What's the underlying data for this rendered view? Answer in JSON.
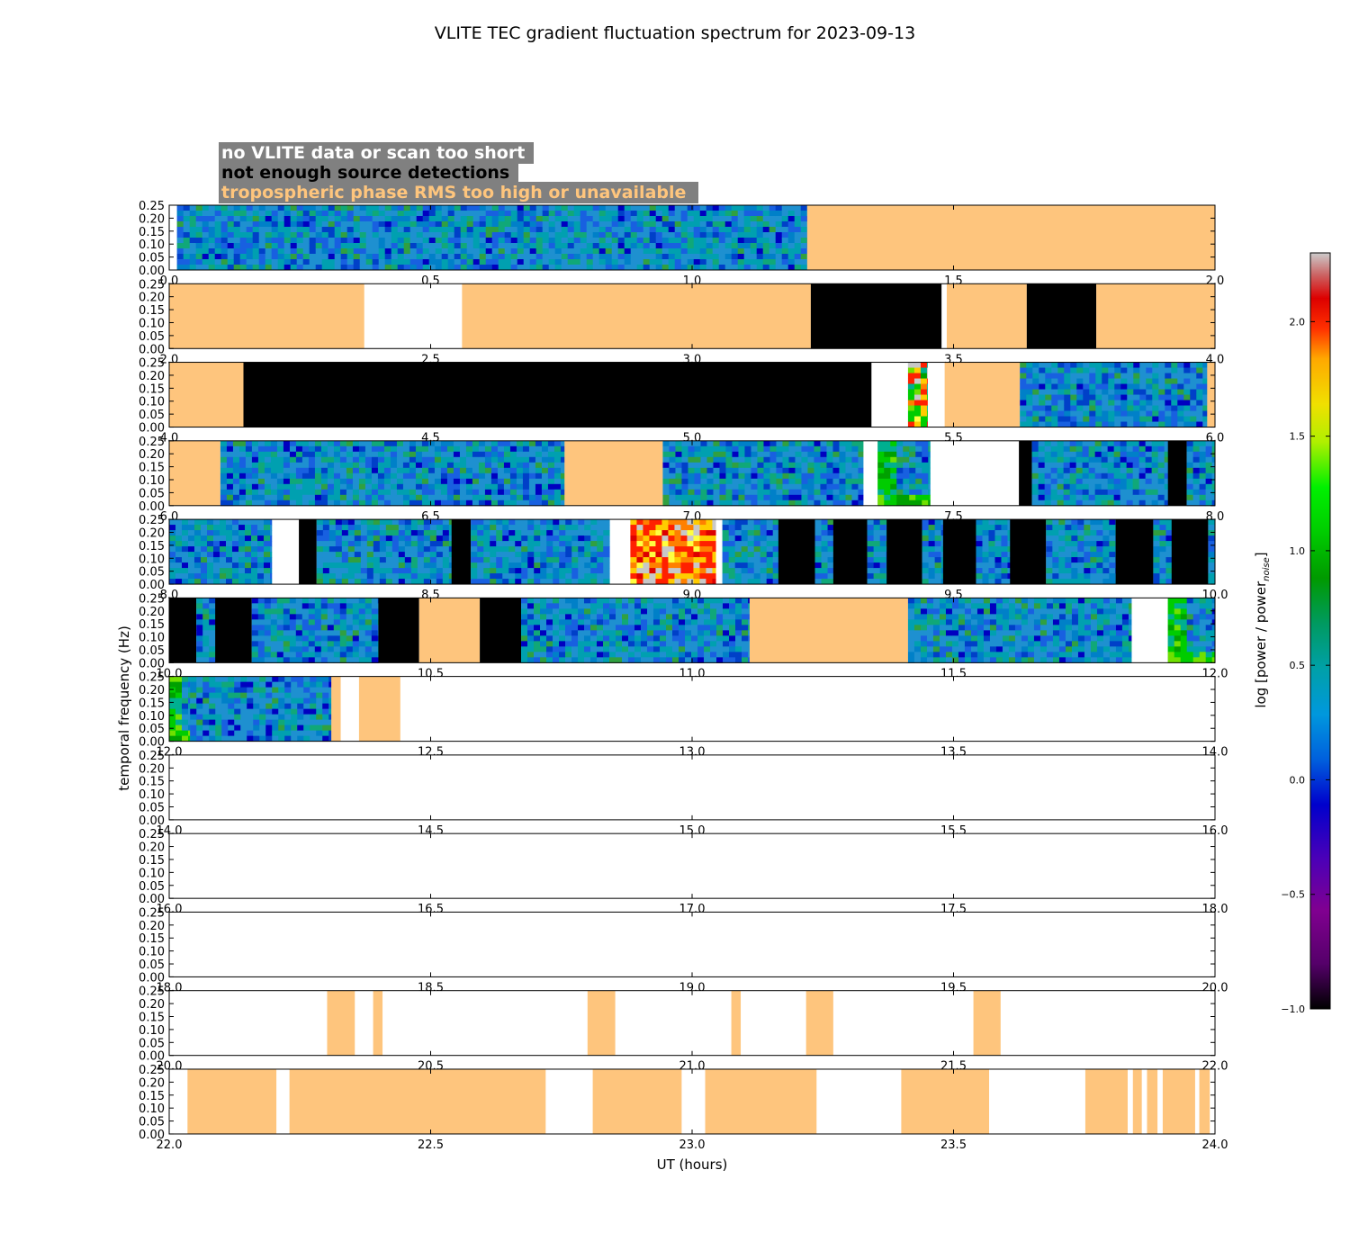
{
  "chart_data": {
    "type": "heatmap",
    "title": "VLITE TEC gradient fluctuation spectrum for 2023-09-13",
    "xlabel": "UT (hours)",
    "ylabel": "temporal frequency (Hz)",
    "ylim": [
      0,
      0.25
    ],
    "yticks": [
      "0.00",
      "0.05",
      "0.10",
      "0.15",
      "0.20",
      "0.25"
    ],
    "legend": {
      "position": "top-left",
      "entries": [
        {
          "label": "no VLITE data or scan too short",
          "color": "#ffffff"
        },
        {
          "label": "not enough source detections",
          "color": "#000000"
        },
        {
          "label": "tropospheric phase RMS too high or unavailable",
          "color": "#fec57d"
        }
      ]
    },
    "colorbar": {
      "label": "log [power / power",
      "label_sub": "noise",
      "label_end": "]",
      "range": [
        -1.0,
        2.3
      ],
      "ticks": [
        "2.0",
        "1.5",
        "1.0",
        "0.5",
        "0.0",
        "−0.5",
        "−1.0"
      ],
      "tick_values": [
        2.0,
        1.5,
        1.0,
        0.5,
        0.0,
        -0.5,
        -1.0
      ]
    },
    "colors": {
      "tropo": "#fec57d",
      "nodet": "#000000",
      "nodata": "#ffffff"
    },
    "panels": [
      {
        "x_range": [
          0,
          2
        ],
        "xticks": [
          "0.0",
          "0.5",
          "1.0",
          "1.5",
          "2.0"
        ],
        "segments": [
          {
            "start": 0.015,
            "end": 1.22,
            "kind": "data",
            "level": "quiet"
          },
          {
            "start": 1.22,
            "end": 2.0,
            "kind": "tropo"
          }
        ]
      },
      {
        "x_range": [
          2,
          4
        ],
        "xticks": [
          "2.0",
          "2.5",
          "3.0",
          "3.5",
          "4.0"
        ],
        "segments": [
          {
            "start": 2.0,
            "end": 2.373,
            "kind": "tropo"
          },
          {
            "start": 2.56,
            "end": 3.227,
            "kind": "tropo"
          },
          {
            "start": 3.227,
            "end": 3.477,
            "kind": "nodet"
          },
          {
            "start": 3.487,
            "end": 3.64,
            "kind": "tropo"
          },
          {
            "start": 3.64,
            "end": 3.773,
            "kind": "nodet"
          },
          {
            "start": 3.773,
            "end": 4.0,
            "kind": "tropo"
          }
        ]
      },
      {
        "x_range": [
          4,
          6
        ],
        "xticks": [
          "4.0",
          "4.5",
          "5.0",
          "5.5",
          "6.0"
        ],
        "segments": [
          {
            "start": 4.0,
            "end": 4.142,
            "kind": "tropo"
          },
          {
            "start": 4.142,
            "end": 5.343,
            "kind": "nodet"
          },
          {
            "start": 5.413,
            "end": 5.45,
            "kind": "data",
            "level": "strong"
          },
          {
            "start": 5.483,
            "end": 5.627,
            "kind": "tropo"
          },
          {
            "start": 5.627,
            "end": 5.985,
            "kind": "data",
            "level": "quiet"
          },
          {
            "start": 5.985,
            "end": 6.0,
            "kind": "tropo"
          }
        ]
      },
      {
        "x_range": [
          6,
          8
        ],
        "xticks": [
          "6.0",
          "6.5",
          "7.0",
          "7.5",
          "8.0"
        ],
        "segments": [
          {
            "start": 6.0,
            "end": 6.098,
            "kind": "tropo"
          },
          {
            "start": 6.098,
            "end": 6.756,
            "kind": "data",
            "level": "quiet"
          },
          {
            "start": 6.756,
            "end": 6.944,
            "kind": "tropo"
          },
          {
            "start": 6.944,
            "end": 7.327,
            "kind": "data",
            "level": "quiet"
          },
          {
            "start": 7.355,
            "end": 7.455,
            "kind": "data",
            "level": "edge"
          },
          {
            "start": 7.625,
            "end": 7.65,
            "kind": "nodet"
          },
          {
            "start": 7.65,
            "end": 7.91,
            "kind": "data",
            "level": "quiet"
          },
          {
            "start": 7.91,
            "end": 7.946,
            "kind": "nodet"
          },
          {
            "start": 7.946,
            "end": 8.0,
            "kind": "data",
            "level": "quiet"
          }
        ]
      },
      {
        "x_range": [
          8,
          10
        ],
        "xticks": [
          "8.0",
          "8.5",
          "9.0",
          "9.5",
          "10.0"
        ],
        "segments": [
          {
            "start": 8.0,
            "end": 8.196,
            "kind": "data",
            "level": "quiet"
          },
          {
            "start": 8.248,
            "end": 8.282,
            "kind": "nodet"
          },
          {
            "start": 8.282,
            "end": 8.54,
            "kind": "data",
            "level": "quiet"
          },
          {
            "start": 8.54,
            "end": 8.577,
            "kind": "nodet"
          },
          {
            "start": 8.577,
            "end": 8.842,
            "kind": "data",
            "level": "quiet"
          },
          {
            "start": 8.882,
            "end": 9.045,
            "kind": "data",
            "level": "hot"
          },
          {
            "start": 9.058,
            "end": 9.165,
            "kind": "data",
            "level": "quiet"
          },
          {
            "start": 9.165,
            "end": 9.235,
            "kind": "nodet"
          },
          {
            "start": 9.235,
            "end": 9.27,
            "kind": "data",
            "level": "quiet"
          },
          {
            "start": 9.27,
            "end": 9.335,
            "kind": "nodet"
          },
          {
            "start": 9.335,
            "end": 9.372,
            "kind": "data",
            "level": "quiet"
          },
          {
            "start": 9.372,
            "end": 9.44,
            "kind": "nodet"
          },
          {
            "start": 9.44,
            "end": 9.48,
            "kind": "data",
            "level": "quiet"
          },
          {
            "start": 9.48,
            "end": 9.543,
            "kind": "nodet"
          },
          {
            "start": 9.543,
            "end": 9.608,
            "kind": "data",
            "level": "quiet"
          },
          {
            "start": 9.608,
            "end": 9.677,
            "kind": "nodet"
          },
          {
            "start": 9.677,
            "end": 9.81,
            "kind": "data",
            "level": "quiet"
          },
          {
            "start": 9.81,
            "end": 9.882,
            "kind": "nodet"
          },
          {
            "start": 9.882,
            "end": 9.917,
            "kind": "data",
            "level": "quiet"
          },
          {
            "start": 9.917,
            "end": 9.987,
            "kind": "nodet"
          },
          {
            "start": 9.987,
            "end": 10.0,
            "kind": "data",
            "level": "quiet"
          }
        ]
      },
      {
        "x_range": [
          10,
          12
        ],
        "xticks": [
          "10.0",
          "10.5",
          "11.0",
          "11.5",
          "12.0"
        ],
        "segments": [
          {
            "start": 10.0,
            "end": 10.052,
            "kind": "nodet"
          },
          {
            "start": 10.052,
            "end": 10.088,
            "kind": "data",
            "level": "quiet"
          },
          {
            "start": 10.088,
            "end": 10.158,
            "kind": "nodet"
          },
          {
            "start": 10.158,
            "end": 10.4,
            "kind": "data",
            "level": "quiet"
          },
          {
            "start": 10.4,
            "end": 10.478,
            "kind": "nodet"
          },
          {
            "start": 10.478,
            "end": 10.594,
            "kind": "tropo"
          },
          {
            "start": 10.594,
            "end": 10.673,
            "kind": "nodet"
          },
          {
            "start": 10.673,
            "end": 11.11,
            "kind": "data",
            "level": "quiet"
          },
          {
            "start": 11.11,
            "end": 11.413,
            "kind": "tropo"
          },
          {
            "start": 11.413,
            "end": 11.84,
            "kind": "data",
            "level": "quiet"
          },
          {
            "start": 11.91,
            "end": 12.0,
            "kind": "data",
            "level": "edge"
          }
        ]
      },
      {
        "x_range": [
          12,
          14
        ],
        "xticks": [
          "12.0",
          "12.5",
          "13.0",
          "13.5",
          "14.0"
        ],
        "segments": [
          {
            "start": 12.0,
            "end": 12.04,
            "kind": "data",
            "level": "edge"
          },
          {
            "start": 12.04,
            "end": 12.31,
            "kind": "data",
            "level": "quiet"
          },
          {
            "start": 12.31,
            "end": 12.328,
            "kind": "tropo"
          },
          {
            "start": 12.363,
            "end": 12.442,
            "kind": "tropo"
          }
        ]
      },
      {
        "x_range": [
          14,
          16
        ],
        "xticks": [
          "14.0",
          "14.5",
          "15.0",
          "15.5",
          "16.0"
        ],
        "segments": []
      },
      {
        "x_range": [
          16,
          18
        ],
        "xticks": [
          "16.0",
          "16.5",
          "17.0",
          "17.5",
          "18.0"
        ],
        "segments": []
      },
      {
        "x_range": [
          18,
          20
        ],
        "xticks": [
          "18.0",
          "18.5",
          "19.0",
          "19.5",
          "20.0"
        ],
        "segments": []
      },
      {
        "x_range": [
          20,
          22
        ],
        "xticks": [
          "20.0",
          "20.5",
          "21.0",
          "21.5",
          "22.0"
        ],
        "segments": [
          {
            "start": 20.302,
            "end": 20.355,
            "kind": "tropo"
          },
          {
            "start": 20.39,
            "end": 20.408,
            "kind": "tropo"
          },
          {
            "start": 20.8,
            "end": 20.853,
            "kind": "tropo"
          },
          {
            "start": 21.075,
            "end": 21.093,
            "kind": "tropo"
          },
          {
            "start": 21.218,
            "end": 21.27,
            "kind": "tropo"
          },
          {
            "start": 21.538,
            "end": 21.59,
            "kind": "tropo"
          }
        ]
      },
      {
        "x_range": [
          22,
          24
        ],
        "xticks": [
          "22.0",
          "22.5",
          "23.0",
          "23.5",
          "24.0"
        ],
        "segments": [
          {
            "start": 22.035,
            "end": 22.205,
            "kind": "tropo"
          },
          {
            "start": 22.23,
            "end": 22.72,
            "kind": "tropo"
          },
          {
            "start": 22.81,
            "end": 22.98,
            "kind": "tropo"
          },
          {
            "start": 23.025,
            "end": 23.238,
            "kind": "tropo"
          },
          {
            "start": 23.4,
            "end": 23.568,
            "kind": "tropo"
          },
          {
            "start": 23.752,
            "end": 23.833,
            "kind": "tropo"
          },
          {
            "start": 23.843,
            "end": 23.86,
            "kind": "tropo"
          },
          {
            "start": 23.87,
            "end": 23.89,
            "kind": "tropo"
          },
          {
            "start": 23.9,
            "end": 23.962,
            "kind": "tropo"
          },
          {
            "start": 23.97,
            "end": 23.99,
            "kind": "tropo"
          }
        ]
      }
    ]
  }
}
